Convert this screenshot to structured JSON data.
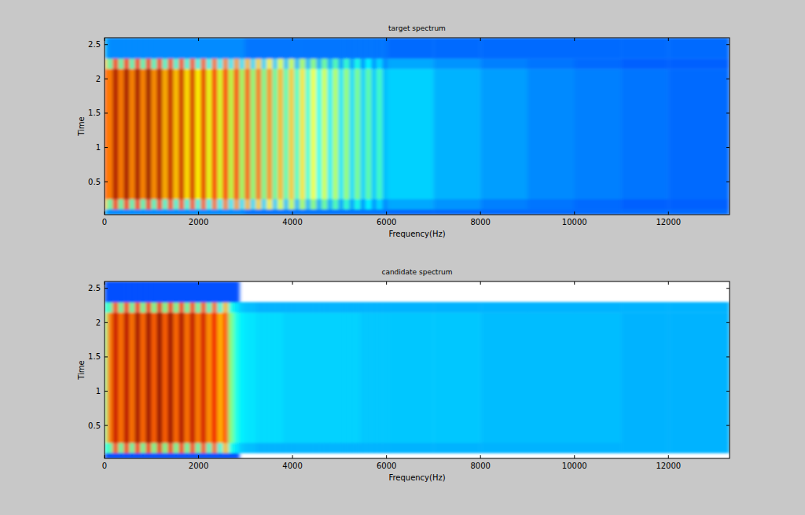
{
  "chart_data": [
    {
      "type": "heatmap",
      "title": "target spectrum",
      "x_label": "Frequency(Hz)",
      "y_label": "Time",
      "xlim": [
        0,
        13300
      ],
      "ylim": [
        0.02,
        2.6
      ],
      "xticks": [
        0,
        2000,
        4000,
        6000,
        8000,
        10000,
        12000
      ],
      "yticks": [
        0.5,
        1,
        1.5,
        2,
        2.5
      ],
      "zlim": [
        0,
        10
      ],
      "x_edges": [
        0,
        58,
        175,
        292,
        409,
        526,
        643,
        760,
        877,
        994,
        1111,
        1228,
        1345,
        1462,
        1579,
        1696,
        1813,
        1930,
        2047,
        2164,
        2281,
        2398,
        2515,
        2632,
        2749,
        2866,
        2983,
        3100,
        3217,
        3334,
        3451,
        3568,
        3685,
        3802,
        3919,
        4036,
        4153,
        4270,
        4387,
        4504,
        4621,
        4738,
        4855,
        4972,
        5089,
        5206,
        5323,
        5440,
        5557,
        5674,
        5791,
        5908,
        6025,
        7000,
        8000,
        9000,
        10000,
        11000,
        12000,
        13300
      ],
      "y_edges": [
        0.02,
        0.1,
        0.25,
        2.15,
        2.3,
        2.6
      ],
      "cells": [
        [
          3,
          2.6,
          2.6,
          2.6,
          2.6,
          2.6,
          2.6,
          2.6,
          2.6,
          2.6,
          2.6,
          2.6,
          2.6,
          2.6,
          2.6,
          2.6,
          2.6,
          2.6,
          2.6,
          2.6,
          2.6,
          2.6,
          2.6,
          2.6,
          2.6,
          2.6,
          2.4,
          2.4,
          2.4,
          2.4,
          2.4,
          2.4,
          2.4,
          2.4,
          2.4,
          2.4,
          2.4,
          2.4,
          2.4,
          2.4,
          2.4,
          2.4,
          2.4,
          2.4,
          2.4,
          2.4,
          2.4,
          2.4,
          2.4,
          2.4,
          2.4,
          2.4,
          2.3,
          2.3,
          2.3,
          2.3,
          2.3,
          2.3,
          2.3
        ],
        [
          7,
          4.5,
          8.6,
          4.5,
          8.7,
          4.4,
          8.7,
          4.4,
          8.8,
          4.3,
          8.6,
          4.2,
          8.4,
          4.1,
          8.3,
          4.0,
          8.2,
          3.9,
          8.0,
          3.8,
          7.8,
          3.7,
          7.6,
          3.6,
          7.3,
          3.5,
          7.0,
          3.4,
          6.7,
          3.3,
          6.4,
          3.2,
          6.0,
          3.1,
          5.8,
          3.0,
          5.5,
          3.0,
          5.2,
          2.9,
          4.9,
          2.9,
          4.6,
          2.8,
          4.3,
          2.8,
          4.0,
          2.7,
          3.7,
          2.7,
          3.4,
          2.6,
          2.9,
          2.7,
          2.5,
          2.4,
          2.3,
          2.2,
          2.2
        ],
        [
          8,
          7.5,
          9.6,
          7.5,
          9.7,
          7.4,
          9.7,
          7.4,
          9.8,
          7.3,
          9.6,
          7.0,
          9.4,
          6.8,
          9.3,
          6.5,
          9.2,
          6.3,
          9.0,
          6.0,
          8.8,
          5.8,
          8.6,
          5.5,
          8.3,
          5.2,
          8.0,
          5.0,
          7.7,
          4.8,
          7.4,
          4.6,
          7.0,
          4.4,
          6.8,
          4.2,
          6.5,
          4.0,
          6.2,
          3.8,
          5.9,
          3.6,
          5.6,
          3.5,
          5.3,
          3.4,
          5.0,
          3.3,
          4.7,
          3.2,
          4.4,
          3.1,
          3.3,
          3.0,
          2.8,
          2.6,
          2.5,
          2.4,
          2.3
        ],
        [
          7,
          4.5,
          8.6,
          4.5,
          8.7,
          4.4,
          8.7,
          4.4,
          8.8,
          4.3,
          8.6,
          4.2,
          8.4,
          4.1,
          8.3,
          4.0,
          8.2,
          3.9,
          8.0,
          3.8,
          7.8,
          3.7,
          7.6,
          3.6,
          7.3,
          3.5,
          7.0,
          3.4,
          6.7,
          3.3,
          6.4,
          3.2,
          6.0,
          3.1,
          5.8,
          3.0,
          5.5,
          3.0,
          5.2,
          2.9,
          4.9,
          2.9,
          4.6,
          2.8,
          4.3,
          2.8,
          4.0,
          2.7,
          3.7,
          2.7,
          3.4,
          2.6,
          2.9,
          2.7,
          2.5,
          2.4,
          2.3,
          2.2,
          2.2
        ],
        [
          3,
          2.6,
          2.6,
          2.6,
          2.6,
          2.6,
          2.6,
          2.6,
          2.6,
          2.6,
          2.6,
          2.6,
          2.6,
          2.6,
          2.6,
          2.6,
          2.6,
          2.6,
          2.6,
          2.6,
          2.6,
          2.6,
          2.6,
          2.6,
          2.6,
          2.6,
          2.4,
          2.4,
          2.4,
          2.4,
          2.4,
          2.4,
          2.4,
          2.4,
          2.4,
          2.4,
          2.4,
          2.4,
          2.4,
          2.4,
          2.4,
          2.4,
          2.4,
          2.4,
          2.4,
          2.4,
          2.4,
          2.4,
          2.4,
          2.4,
          2.4,
          2.4,
          2.3,
          2.3,
          2.3,
          2.3,
          2.3,
          2.3,
          2.3
        ]
      ]
    },
    {
      "type": "heatmap",
      "title": "candidate spectrum",
      "x_label": "Frequency(Hz)",
      "y_label": "Time",
      "xlim": [
        0,
        13300
      ],
      "ylim": [
        0.02,
        2.6
      ],
      "xticks": [
        0,
        2000,
        4000,
        6000,
        8000,
        10000,
        12000
      ],
      "yticks": [
        0.5,
        1,
        1.5,
        2,
        2.5
      ],
      "zlim": [
        0,
        10
      ],
      "x_edges": [
        0,
        58,
        175,
        292,
        409,
        526,
        643,
        760,
        877,
        994,
        1111,
        1228,
        1345,
        1462,
        1579,
        1696,
        1813,
        1930,
        2047,
        2164,
        2281,
        2398,
        2515,
        2632,
        2749,
        2866,
        2983,
        3100,
        3217,
        3334,
        3451,
        3568,
        3685,
        3802,
        3919,
        4036,
        4153,
        4270,
        4387,
        4504,
        4621,
        4738,
        4855,
        4972,
        5089,
        5206,
        5323,
        5440,
        5557,
        5674,
        5791,
        5908,
        6025,
        7000,
        8000,
        9000,
        10000,
        11000,
        12000,
        13300
      ],
      "y_edges": [
        0.02,
        0.1,
        0.25,
        2.15,
        2.3,
        2.6
      ],
      "cells": [
        [
          2,
          2,
          2,
          2,
          2,
          2,
          2,
          2,
          2,
          2,
          2,
          2,
          2,
          2,
          2,
          2,
          2,
          2,
          2,
          2,
          2,
          2,
          2,
          2,
          2,
          null,
          null,
          null,
          null,
          null,
          null,
          null,
          null,
          null,
          null,
          null,
          null,
          null,
          null,
          null,
          null,
          null,
          null,
          null,
          null,
          null,
          null,
          null,
          null,
          null,
          null,
          null,
          null,
          null,
          null,
          null,
          null,
          null,
          null
        ],
        [
          4,
          4.5,
          8.3,
          4.6,
          8.5,
          4.6,
          8.7,
          4.7,
          8.8,
          4.8,
          8.9,
          4.8,
          8.8,
          4.7,
          8.6,
          4.6,
          8.4,
          4.5,
          8.2,
          4.3,
          7.9,
          4.0,
          7.0,
          4.0,
          3.5,
          3.2,
          3.1,
          3.1,
          3.0,
          3.0,
          3.0,
          3.0,
          3.0,
          3.0,
          3.0,
          3.0,
          3.0,
          3.0,
          3.0,
          3.0,
          3.0,
          3.0,
          3.0,
          3.0,
          3.0,
          3.0,
          3.0,
          3.0,
          3.0,
          3.0,
          3.0,
          3.0,
          3.0,
          3.0,
          3.0,
          3.0,
          3.0,
          3.0,
          3.0
        ],
        [
          5,
          7.5,
          9.3,
          7.6,
          9.5,
          7.6,
          9.7,
          7.7,
          9.8,
          7.8,
          9.9,
          7.8,
          9.8,
          7.7,
          9.6,
          7.6,
          9.4,
          7.5,
          9.2,
          7.3,
          8.9,
          7.0,
          8.0,
          5.0,
          4.0,
          3.6,
          3.5,
          3.5,
          3.4,
          3.4,
          3.4,
          3.4,
          3.4,
          3.3,
          3.3,
          3.3,
          3.3,
          3.3,
          3.3,
          3.3,
          3.3,
          3.3,
          3.3,
          3.3,
          3.3,
          3.3,
          3.3,
          3.2,
          3.2,
          3.2,
          3.2,
          3.2,
          3.2,
          3.2,
          3.1,
          3.1,
          3.1,
          3.0,
          3.0
        ],
        [
          4,
          4.5,
          8.3,
          4.6,
          8.5,
          4.6,
          8.7,
          4.7,
          8.8,
          4.8,
          8.9,
          4.8,
          8.8,
          4.7,
          8.6,
          4.6,
          8.4,
          4.5,
          8.2,
          4.3,
          7.9,
          4.0,
          7.0,
          4.0,
          3.5,
          3.2,
          3.1,
          3.1,
          3.0,
          3.0,
          3.0,
          3.0,
          3.0,
          3.0,
          3.0,
          3.0,
          3.0,
          3.0,
          3.0,
          3.0,
          3.0,
          3.0,
          3.0,
          3.0,
          3.0,
          3.0,
          3.0,
          3.0,
          3.0,
          3.0,
          3.0,
          3.0,
          3.0,
          3.0,
          3.0,
          3.0,
          3.0,
          3.0,
          3.0
        ],
        [
          2,
          2,
          2,
          2,
          2,
          2,
          2,
          2,
          2,
          2,
          2,
          2,
          2,
          2,
          2,
          2,
          2,
          2,
          2,
          2,
          2,
          2,
          2,
          2,
          2,
          null,
          null,
          null,
          null,
          null,
          null,
          null,
          null,
          null,
          null,
          null,
          null,
          null,
          null,
          null,
          null,
          null,
          null,
          null,
          null,
          null,
          null,
          null,
          null,
          null,
          null,
          null,
          null,
          null,
          null,
          null,
          null,
          null,
          null
        ]
      ]
    }
  ]
}
